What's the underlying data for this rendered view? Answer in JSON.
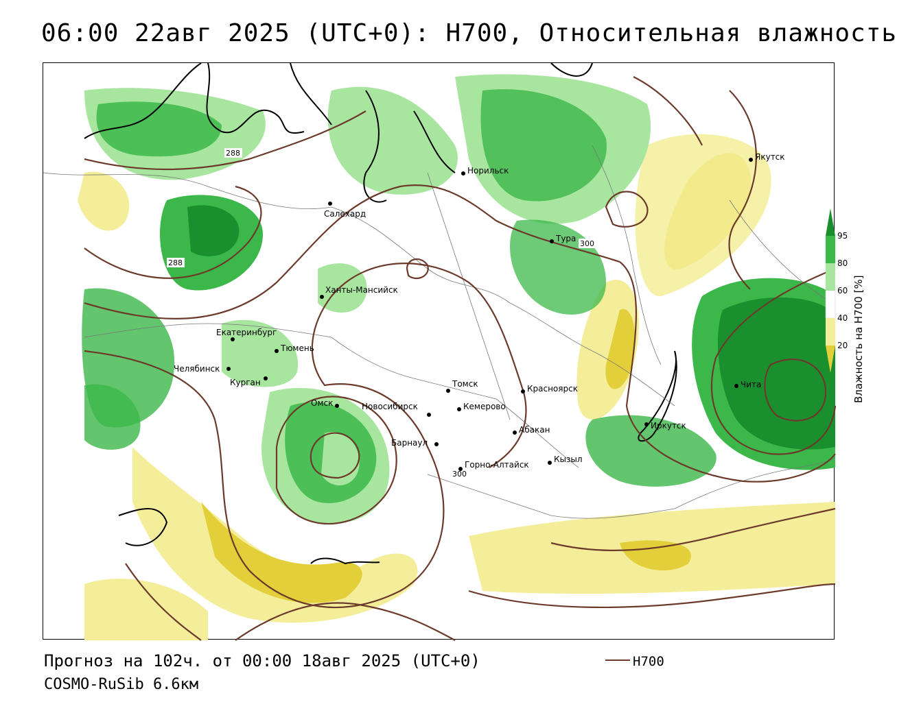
{
  "title": "06:00 22авг 2025 (UTC+0): H700, Относительная влажность",
  "footer": {
    "forecast": "Прогноз на 102ч. от 00:00 18авг 2025 (UTC+0)",
    "model": "COSMO-RuSib 6.6км"
  },
  "legend": {
    "line_label": "H700",
    "line_color": "#6b3a2a",
    "colorbar_title": "Влажность на H700 [%]",
    "ticks": [
      "95",
      "80",
      "60",
      "40",
      "20"
    ],
    "colors": {
      "c95": "#1a8f2e",
      "c80": "#3cb84a",
      "c60": "#a8e6a0",
      "c40": "#ffffff",
      "c20": "#f4ee9a",
      "c0": "#e2cf3a"
    }
  },
  "cities": [
    {
      "name": "Норильск"
    },
    {
      "name": "Якутск"
    },
    {
      "name": "Салехард"
    },
    {
      "name": "Тура"
    },
    {
      "name": "Ханты-Мансийск"
    },
    {
      "name": "Екатеринбург"
    },
    {
      "name": "Тюмень"
    },
    {
      "name": "Челябинск"
    },
    {
      "name": "Курган"
    },
    {
      "name": "Омск"
    },
    {
      "name": "Томск"
    },
    {
      "name": "Новосибирск"
    },
    {
      "name": "Кемерово"
    },
    {
      "name": "Красноярск"
    },
    {
      "name": "Барнаул"
    },
    {
      "name": "Абакан"
    },
    {
      "name": "Горно-Алтайск"
    },
    {
      "name": "Кызыл"
    },
    {
      "name": "Иркутск"
    },
    {
      "name": "Чита"
    }
  ],
  "isolines": [
    {
      "value": "288"
    },
    {
      "value": "288"
    },
    {
      "value": "300"
    },
    {
      "value": "300"
    }
  ]
}
